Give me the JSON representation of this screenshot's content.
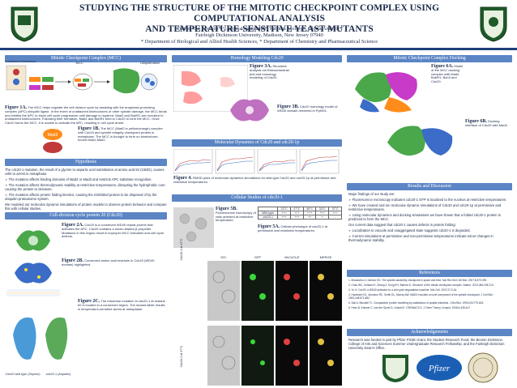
{
  "header": {
    "title_line1": "STUDYING THE STRUCTURE OF THE MITOTIC CHECKPOINT COMPLEX USING COMPUTATIONAL ANALYSIS",
    "title_line2": "AND TEMPERATURE-SENSITIVE YEAST MUTANTS",
    "authors": "Trevor Van Eeuwen* ¹, James Loginsland*, Patricia Molloy*, Gloria Anderle*",
    "affil1": "Fairleigh Dickinson University, Madison, New Jersey 07940",
    "affil2": "* Department of Biological and Allied Health Sciences, * Department of Chemistry and Pharmaceutical Science"
  },
  "sections": {
    "mcc": "Mitotic Checkpoint Complex (MCC)",
    "homology": "Homology Modeling Cdc20",
    "docking": "Mitotic Checkpoint Complex Docking",
    "hypothesis": "Hypothesis",
    "md": "Molecular Dynamics of Cdc20 and cdc20-1p",
    "results": "Results and Discussion",
    "cellsize": "Cell-division cycle protein 20 (Cdc20)",
    "cellular": "Cellular Studies of cdc20-1",
    "references": "References",
    "ack": "Acknowledgements"
  },
  "mcc_diagram": {
    "unattached_label": "Unattached Kinetochore",
    "mitosis_label": "Mitosis",
    "mcc_label": "MCC",
    "mad2": "Mad2",
    "bub3": "Bub3",
    "bubr1": "BubR1",
    "cdc20": "Cdc20",
    "apc": "APC",
    "ubiquitination": "Ubiquitination"
  },
  "figs": {
    "f1a_title": "Figure 1A.",
    "f1a_text": "The MCC helps regulate the cell division cycle by assisting with the anaphase-promoting complex (APC) ubiquitin ligase. In the event of unattached kinetochores or other spindle damage, the MCC binds and inhibits the APC to block cell cycle progression until damage is repaired. Mad2 and BubR1 are recruited to unattached kinetochores. Following their formation, Mad2 and BubR1 bind to Cdc20 to form the MCC. Once Cdc20 forms the MCC, it is unable to activate the APC, resulting in cell cycle arrest.",
    "f1b_title": "Figure 1B.",
    "f1b_text": "The MCC (Mad2 in yellow/orange) complex with Cdc20 and spindle integrity checkpoint protein in metaphase. The MCC is thought to form on kinetochore-bound Mad1-Mad2.",
    "f2a_title": "Figure 2A.",
    "f2a_text": "Cdc20 is a conserved WD40 repeat protein that activates the APC. Cdc20 contains a seven-bladed β-propeller. Mutations in this region result in improper MCC formation and cell cycle defects.",
    "f2b_title": "Figure 2B.",
    "f2b_text": "Conserved amino acid residues in Cdc20 (WD40 domain) highlighted.",
    "f2c_title": "Figure 2C.",
    "f2c_text": "The missense mutation in cdc20-1 at residue 82 is located in a conserved region. The mutant allele results in temperature-sensitive arrest at metaphase.",
    "f3a_title": "Figure 3A.",
    "f3a_text": "Structural analysis via Ramachandran plot and homology modeling of Cdc20.",
    "f3b_title": "Figure 3B.",
    "f3b_text": "Cdc20 homology model of WD40 domain rendered in PyMOL.",
    "f4_title": "Figure 4.",
    "f4_text": "RMSD plots of molecular dynamics simulations for wild-type Cdc20 and cdc20-1p at permissive and restrictive temperatures.",
    "f5a_title": "Figure 5A.",
    "f5a_text": "Cellular phenotype of cdc20-1 at permissive and restrictive temperatures.",
    "f5b_title": "Figure 5B.",
    "f5b_text": "Fluorescence microscopy of cells arrested at restrictive temperature.",
    "f6a_title": "Figure 6A.",
    "f6a_text": "Model of the MCC docking complex with Mad2, BubR1, Bub3 and Cdc20.",
    "f6b_title": "Figure 6B.",
    "f6b_text": "Docking interface of Cdc20 with Mad2."
  },
  "hypothesis": {
    "intro": "The cdc20-1 mutation, the result of a glycine to aspartic acid substitution at amino acid 82 (G82D), causes cells to arrest in metaphase.",
    "h1": "➢ The mutation affects binding domains of Mad2 or Mad3 and restricts APC substrate recognition.",
    "h2": "➢ The mutation affects thermodynamic stability at restrictive temperatures, disrupting the hydrophobic core causing the protein to denature.",
    "h3": "➢ The mutation affects protein folding kinetics, causing the misfolded protein to be disposed of by the ubiquitin-proteasome system.",
    "closing": "We modeled our molecular dynamic simulations of protein models to observe protein behavior and compare this with cellular studies."
  },
  "table": {
    "headers": [
      "",
      "23°C",
      "27°C",
      "30°C",
      "33°C",
      "37°C"
    ],
    "rows": [
      [
        "Wild-type",
        "+++",
        "+++",
        "+++",
        "+++",
        "+++"
      ],
      [
        "cdc20-1",
        "+++",
        "+++",
        "++",
        "+",
        "-"
      ]
    ]
  },
  "micro_labels": [
    "DIC",
    "GFP",
    "VACUOLE",
    "MERGE"
  ],
  "micro_rows": [
    "Cdc20-1 at 23°C",
    "Cdc20-1 at 37°C"
  ],
  "results": {
    "intro": "Major findings of our study are:",
    "r1": "➢ Fluorescence microscopy indicates cdc20-1 GFP is localized to the nucleus at restrictive temperatures.",
    "r2": "➢ We have created and run molecular dynamic simulations of Cdc20 and cdc20-1p at permissive and restrictive temperatures.",
    "r3": "➢ Using molecular dynamics and docking simulations we have shown that a folded cdc20-1 protein is predicted to form the MCC.",
    "future": "Our current data suggest that cdc20-1 causes defects in protein folding:",
    "f1": "➢ Localization to vacuole and unaggregated state suggests cdc20-1 is degraded.",
    "f2": "➢ Current simulations at permissive and non-permissive temperatures indicate minor changes in thermodynamic stability."
  },
  "references": [
    "1. Musacchio A, Salmon ED. The spindle-assembly checkpoint in space and time. Nat Rev Mol Cell Biol. 2007;8:379-393.",
    "2. Chao WC, Kulkarni K, Zhang Z, Kong EH, Barford D. Structure of the mitotic checkpoint complex. Nature. 2012;484:208-213.",
    "3. Yu H. Cdc20: a WD40 activator for a cell cycle degradation machine. Mol Cell. 2007;27:3-16.",
    "4. Hardwick KG, Johnston RC, Smith DL, Murray AW. MAD3 encodes a novel component of the spindle checkpoint. J Cell Biol. 2000;148:871-882.",
    "5. Sali A, Blundell TL. Comparative protein modelling by satisfaction of spatial restraints. J Mol Biol. 1993;234:779-815.",
    "6. Hess B, Kutzner C, van der Spoel D, Lindahl E. GROMACS 4. J Chem Theory Comput. 2008;4:435-447."
  ],
  "ack": "Research was funded in part by Pfizer PSSE Grant, the Student Research Fund, the Becton Dickinson College of Arts and Sciences Summer Undergraduate Research Fellowship, and the Fairleigh Dickinson University Dean's Office.",
  "logos": {
    "left": "FDU",
    "pfizer": "Pfizer",
    "right": "FDU"
  },
  "strain_labels": [
    "Cdc20 wild type (Glycine)",
    "cdc20-1 (Aspartic)"
  ],
  "colors": {
    "header_bar": "#5b85c4",
    "title": "#1a2a4a",
    "mad2": "#ff8c1a",
    "bubr1": "#4aa84a",
    "cdc20": "#c03a3a",
    "bub3": "#c83ac8",
    "apc": "#3a6cc8"
  }
}
